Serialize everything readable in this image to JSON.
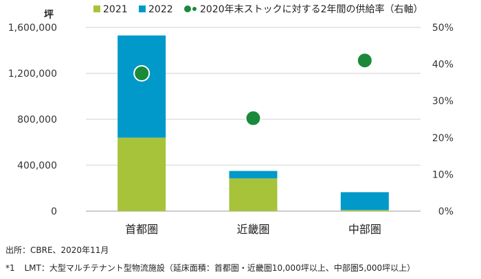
{
  "chart_data": {
    "type": "bar",
    "stacked": true,
    "categories": [
      "首都圏",
      "近畿圏",
      "中部圏"
    ],
    "series": [
      {
        "name": "2021",
        "values": [
          640000,
          285000,
          10000
        ],
        "color": "#a6c33a"
      },
      {
        "name": "2022",
        "values": [
          890000,
          65000,
          155000
        ],
        "color": "#0099c9"
      }
    ],
    "overlay": {
      "name": "2020年末ストックに対する2年間の供給率（右軸）",
      "type": "scatter",
      "axis": "right",
      "values": [
        37.5,
        25.3,
        41.0
      ],
      "color": "#1a8a3a"
    },
    "y_left": {
      "label": "坪",
      "range": [
        0,
        1600000
      ],
      "ticks": [
        "0",
        "400,000",
        "800,000",
        "1,200,000",
        "1,600,000"
      ]
    },
    "y_right": {
      "range": [
        0,
        50
      ],
      "ticks": [
        "0%",
        "10%",
        "20%",
        "30%",
        "40%",
        "50%"
      ]
    },
    "grid": true,
    "legend_position": "top"
  },
  "notes": {
    "source": "出所：CBRE、2020年11月",
    "footnote_mark": "*1",
    "footnote": "LMT：大型マルチテナント型物流施設（延床面積：首都圏・近畿圏10,000坪以上、中部圏5,000坪以上）"
  }
}
